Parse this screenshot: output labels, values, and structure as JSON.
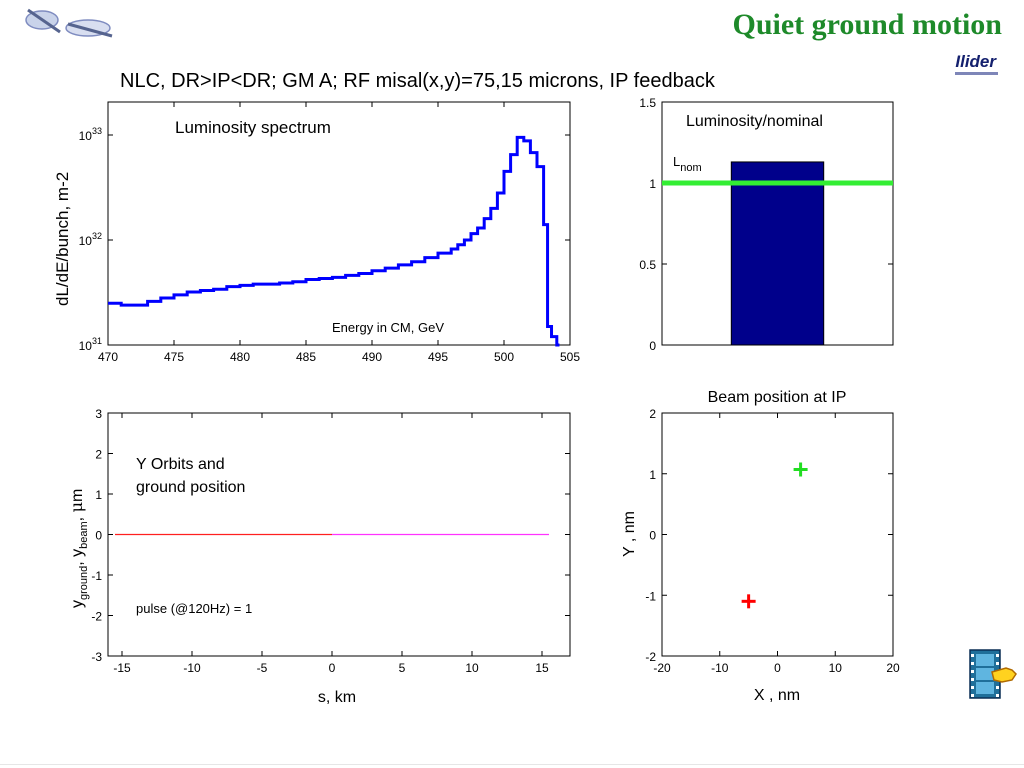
{
  "slide": {
    "title": "Quiet ground motion",
    "author": "Ilider",
    "figure_title": "NLC, DR>IP<DR; GM A; RF misal(x,y)=75,15 microns, IP feedback"
  },
  "icons": {
    "logo": "logo-icon",
    "nav": "filmstrip-hand-icon"
  },
  "colors": {
    "title_green": "#1e8a2a",
    "spectrum_blue": "#0000ff",
    "bar_navy": "#00008b",
    "nominal_green": "#33ee33"
  },
  "chart_data": [
    {
      "type": "line",
      "title": "Luminosity spectrum",
      "xlabel": "Energy in CM, GeV",
      "ylabel": "dL/dE/bunch, m-2",
      "xlim": [
        470,
        505
      ],
      "ylim": [
        1e+31,
        1e+33
      ],
      "yscale": "log",
      "xticks": [
        "470",
        "475",
        "480",
        "485",
        "490",
        "495",
        "500",
        "505"
      ],
      "yticks": [
        {
          "base": "10",
          "exp": "31"
        },
        {
          "base": "10",
          "exp": "32"
        },
        {
          "base": "10",
          "exp": "33"
        }
      ],
      "series": [
        {
          "step": true,
          "x": [
            470.0,
            471.0,
            472.0,
            473.0,
            474.0,
            475.0,
            476.0,
            477.0,
            478.0,
            479.0,
            480.0,
            481.0,
            482.0,
            483.0,
            484.0,
            485.0,
            486.0,
            487.0,
            488.0,
            489.0,
            490.0,
            491.0,
            492.0,
            493.0,
            494.0,
            495.0,
            496.0,
            496.5,
            497.0,
            497.5,
            498.0,
            498.5,
            499.0,
            499.5,
            500.0,
            500.5,
            501.0,
            501.5,
            502.0,
            502.5,
            503.0,
            503.3,
            503.6,
            504.0
          ],
          "y": [
            2.5e+31,
            2.4e+31,
            2.4e+31,
            2.6e+31,
            2.8e+31,
            3e+31,
            3.2e+31,
            3.3e+31,
            3.4e+31,
            3.6e+31,
            3.7e+31,
            3.8e+31,
            3.8e+31,
            3.9e+31,
            4e+31,
            4.2e+31,
            4.3e+31,
            4.4e+31,
            4.6e+31,
            4.8e+31,
            5.1e+31,
            5.4e+31,
            5.8e+31,
            6.2e+31,
            6.8e+31,
            7.5e+31,
            8.2e+31,
            9e+31,
            1e+32,
            1.15e+32,
            1.3e+32,
            1.6e+32,
            2e+32,
            2.8e+32,
            4.5e+32,
            6.5e+32,
            9.5e+32,
            8.8e+32,
            6.8e+32,
            5e+32,
            1.4e+32,
            1.5e+31,
            1.2e+31,
            1e+31
          ]
        }
      ]
    },
    {
      "type": "bar",
      "title": "Luminosity/nominal",
      "ylim": [
        0,
        1.5
      ],
      "yticks": [
        "0",
        "0.5",
        "1",
        "1.5"
      ],
      "values": [
        1.13
      ],
      "reference_line": {
        "label": "L",
        "subscript": "nom",
        "value": 1.0
      }
    },
    {
      "type": "line",
      "title": "Y Orbits and ground position",
      "xlabel": "s, km",
      "xlim": [
        -16,
        17
      ],
      "ylim": [
        -3,
        3
      ],
      "xticks": [
        "-15",
        "-10",
        "-5",
        "0",
        "5",
        "10",
        "15"
      ],
      "yticks": [
        "-3",
        "-2",
        "-1",
        "0",
        "1",
        "2",
        "3"
      ],
      "annotation": "pulse (@120Hz)  = 1",
      "series": [
        {
          "x": [
            -15.5,
            0
          ],
          "y": [
            0,
            0
          ],
          "color": "#ff2020"
        },
        {
          "x": [
            0,
            15.5
          ],
          "y": [
            0,
            0
          ],
          "color": "#ff33ff"
        }
      ]
    },
    {
      "type": "scatter",
      "title": "Beam position at IP",
      "xlabel": "X , nm",
      "ylabel": "Y , nm",
      "xlim": [
        -20,
        20
      ],
      "ylim": [
        -2,
        2
      ],
      "xticks": [
        "-20",
        "-10",
        "0",
        "10",
        "20"
      ],
      "yticks": [
        "-2",
        "-1",
        "0",
        "1",
        "2"
      ],
      "points": [
        {
          "x": 4.0,
          "y": 1.07,
          "color": "#22dd22"
        },
        {
          "x": -5.0,
          "y": -1.1,
          "color": "#ff0000"
        }
      ]
    }
  ]
}
